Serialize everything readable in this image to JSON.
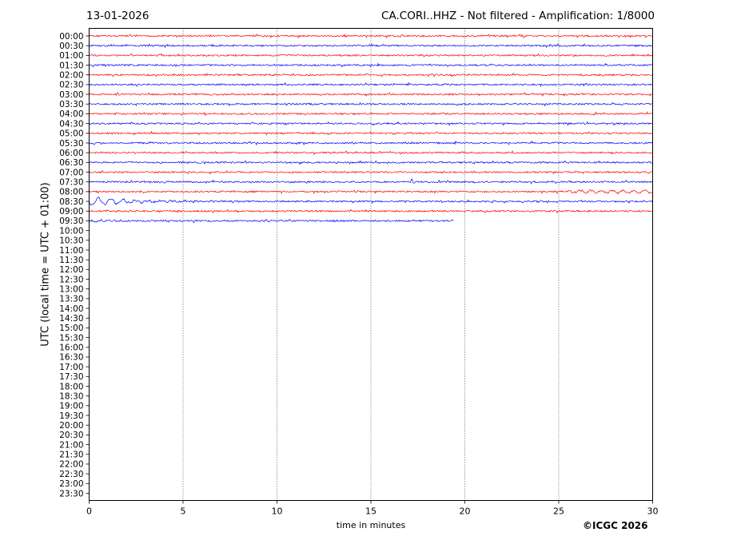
{
  "header": {
    "date": "13-01-2026",
    "title": "CA.CORI..HHZ - Not filtered - Amplification: 1/8000"
  },
  "footer": {
    "credit": "©ICGC 2026"
  },
  "chart_data": {
    "type": "line",
    "title": "CA.CORI..HHZ - Not filtered - Amplification: 1/8000",
    "xlabel": "time in minutes",
    "ylabel": "UTC (local time = UTC + 01:00)",
    "xlim": [
      0,
      30
    ],
    "xticks": [
      0,
      5,
      10,
      15,
      20,
      25,
      30
    ],
    "grid": "vertical dotted lines at x = 5, 10, 15, 20, 25",
    "trace_colors": [
      "#ff0000",
      "#0000ff"
    ],
    "yticks": [
      "00:00",
      "00:30",
      "01:00",
      "01:30",
      "02:00",
      "02:30",
      "03:00",
      "03:30",
      "04:00",
      "04:30",
      "05:00",
      "05:30",
      "06:00",
      "06:30",
      "07:00",
      "07:30",
      "08:00",
      "08:30",
      "09:00",
      "09:30",
      "10:00",
      "10:30",
      "11:00",
      "11:30",
      "12:00",
      "12:30",
      "13:00",
      "13:30",
      "14:00",
      "14:30",
      "15:00",
      "15:30",
      "16:00",
      "16:30",
      "17:00",
      "17:30",
      "18:00",
      "18:30",
      "19:00",
      "19:30",
      "20:00",
      "20:30",
      "21:00",
      "21:30",
      "22:00",
      "22:30",
      "23:00",
      "23:30"
    ],
    "series": [
      {
        "row": "00:00",
        "color": "#ff0000",
        "x_end": 30
      },
      {
        "row": "00:30",
        "color": "#0000ff",
        "x_end": 30
      },
      {
        "row": "01:00",
        "color": "#ff0000",
        "x_end": 30
      },
      {
        "row": "01:30",
        "color": "#0000ff",
        "x_end": 30
      },
      {
        "row": "02:00",
        "color": "#ff0000",
        "x_end": 30
      },
      {
        "row": "02:30",
        "color": "#0000ff",
        "x_end": 30
      },
      {
        "row": "03:00",
        "color": "#ff0000",
        "x_end": 30
      },
      {
        "row": "03:30",
        "color": "#0000ff",
        "x_end": 30
      },
      {
        "row": "04:00",
        "color": "#ff0000",
        "x_end": 30
      },
      {
        "row": "04:30",
        "color": "#0000ff",
        "x_end": 30
      },
      {
        "row": "05:00",
        "color": "#ff0000",
        "x_end": 30
      },
      {
        "row": "05:30",
        "color": "#0000ff",
        "x_end": 30
      },
      {
        "row": "06:00",
        "color": "#ff0000",
        "x_end": 30
      },
      {
        "row": "06:30",
        "color": "#0000ff",
        "x_end": 30
      },
      {
        "row": "07:00",
        "color": "#ff0000",
        "x_end": 30
      },
      {
        "row": "07:30",
        "color": "#0000ff",
        "x_end": 30,
        "event_at": 17.1
      },
      {
        "row": "08:00",
        "color": "#ff0000",
        "x_end": 30,
        "activity_from": 25.5
      },
      {
        "row": "08:30",
        "color": "#0000ff",
        "x_end": 30,
        "activity": "large oscillation 0-4 min, decaying"
      },
      {
        "row": "09:00",
        "color": "#ff0000",
        "x_end": 30
      },
      {
        "row": "09:30",
        "color": "#0000ff",
        "x_end": 19.4
      }
    ]
  }
}
